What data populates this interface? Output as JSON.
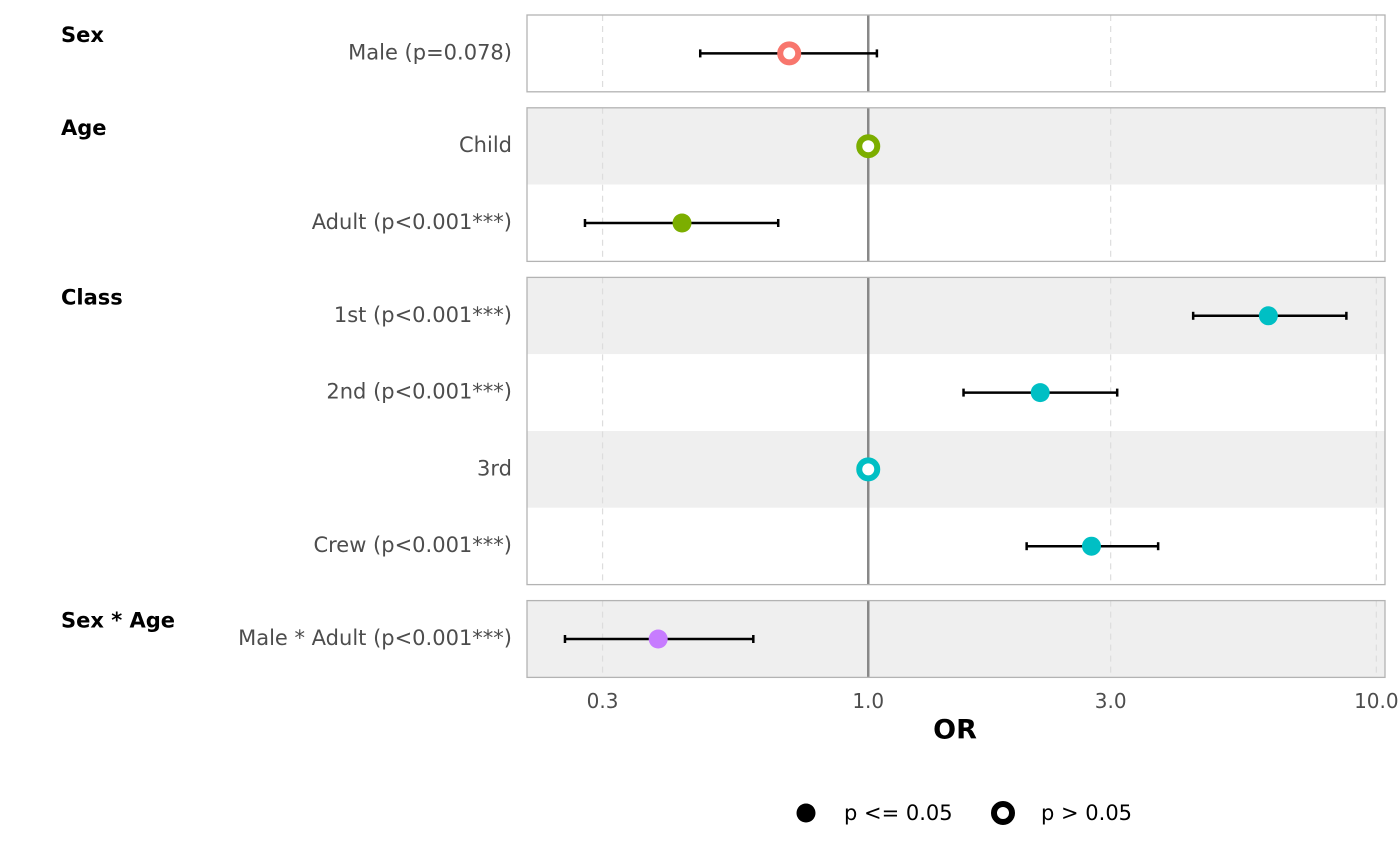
{
  "chart_data": {
    "type": "forest",
    "x_label": "OR",
    "log_x": true,
    "xlim": [
      0.213,
      10.4
    ],
    "xticks": [
      {
        "value": 0.3,
        "label": "0.3"
      },
      {
        "value": 1,
        "label": "1.0"
      },
      {
        "value": 3,
        "label": "3.0"
      },
      {
        "value": 10,
        "label": "10.0"
      }
    ],
    "reference_line": 1,
    "grid": true,
    "legend_position": "bottom",
    "legend": {
      "significant": "p <= 0.05",
      "not_significant": "p > 0.05"
    },
    "groups": [
      {
        "name": "Sex",
        "color": "#F8766D",
        "rows": [
          {
            "label": "Male (p=0.078)",
            "estimate": 0.699,
            "lower": 0.467,
            "upper": 1.04,
            "significant": false
          }
        ]
      },
      {
        "name": "Age",
        "color": "#7CAE00",
        "rows": [
          {
            "label": "Child",
            "estimate": 1,
            "lower": null,
            "upper": null,
            "significant": false
          },
          {
            "label": "Adult (p<0.001***)",
            "estimate": 0.43,
            "lower": 0.277,
            "upper": 0.665,
            "significant": true
          }
        ]
      },
      {
        "name": "Class",
        "color": "#00BFC4",
        "rows": [
          {
            "label": "1st (p<0.001***)",
            "estimate": 6.13,
            "lower": 4.36,
            "upper": 8.73,
            "significant": true
          },
          {
            "label": "2nd (p<0.001***)",
            "estimate": 2.18,
            "lower": 1.54,
            "upper": 3.09,
            "significant": true
          },
          {
            "label": "3rd",
            "estimate": 1,
            "lower": null,
            "upper": null,
            "significant": false
          },
          {
            "label": "Crew (p<0.001***)",
            "estimate": 2.75,
            "lower": 2.05,
            "upper": 3.72,
            "significant": true
          }
        ]
      },
      {
        "name": "Sex * Age",
        "color": "#C77CFF",
        "rows": [
          {
            "label": "Male * Adult (p<0.001***)",
            "estimate": 0.386,
            "lower": 0.253,
            "upper": 0.594,
            "significant": true
          }
        ]
      }
    ]
  }
}
